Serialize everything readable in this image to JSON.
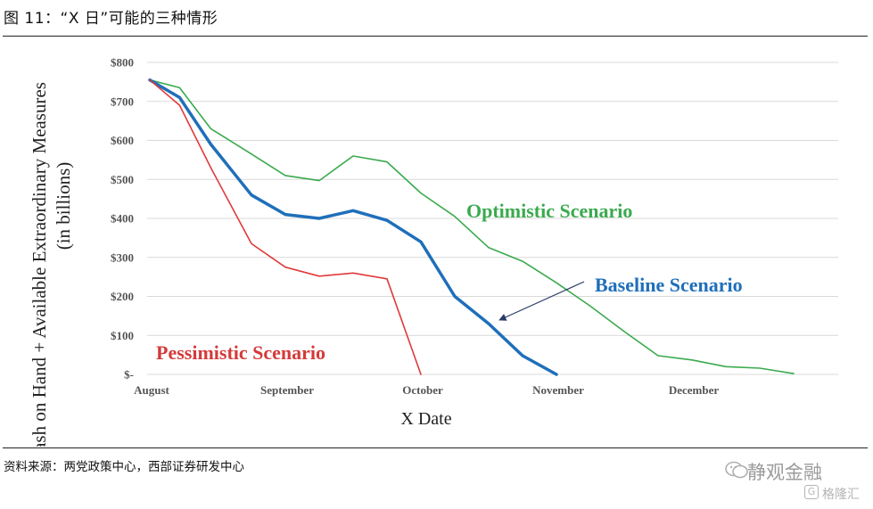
{
  "figure": {
    "title": "图 11：“X 日”可能的三种情形",
    "source": "资料来源：两党政策中心，西部证券研发中心"
  },
  "watermark": {
    "name": "静观金融",
    "sub": "格隆汇",
    "logo_icon": "wechat-icon",
    "badge_icon": "g-icon",
    "badge_glyph": "G"
  },
  "chart_data": {
    "type": "line",
    "xlabel": "X Date",
    "ylabel": "Cash on Hand + Available Extraordinary Measures",
    "ylabel_sub": "(in billions)",
    "x_range": [
      0,
      5.0
    ],
    "ylim": [
      0,
      800
    ],
    "yticks": [
      {
        "value": 800,
        "label": "$800"
      },
      {
        "value": 700,
        "label": "$700"
      },
      {
        "value": 600,
        "label": "$600"
      },
      {
        "value": 500,
        "label": "$500"
      },
      {
        "value": 400,
        "label": "$400"
      },
      {
        "value": 300,
        "label": "$300"
      },
      {
        "value": 200,
        "label": "$200"
      },
      {
        "value": 100,
        "label": "$100"
      },
      {
        "value": 0,
        "label": "$-"
      }
    ],
    "xticks": [
      {
        "value": 0,
        "label": "August"
      },
      {
        "value": 1,
        "label": "September"
      },
      {
        "value": 2,
        "label": "October"
      },
      {
        "value": 3,
        "label": "November"
      },
      {
        "value": 4,
        "label": "December"
      }
    ],
    "grid": "horizontal",
    "series": [
      {
        "name": "Optimistic Scenario",
        "color": "#3aaa4e",
        "width": 1.6,
        "points": [
          [
            0,
            755
          ],
          [
            0.22,
            735
          ],
          [
            0.45,
            630
          ],
          [
            0.75,
            565
          ],
          [
            1.0,
            510
          ],
          [
            1.25,
            497
          ],
          [
            1.5,
            560
          ],
          [
            1.75,
            545
          ],
          [
            2.0,
            465
          ],
          [
            2.25,
            405
          ],
          [
            2.5,
            325
          ],
          [
            2.75,
            290
          ],
          [
            3.0,
            235
          ],
          [
            3.25,
            175
          ],
          [
            3.5,
            110
          ],
          [
            3.75,
            48
          ],
          [
            4.0,
            37
          ],
          [
            4.25,
            20
          ],
          [
            4.5,
            16
          ],
          [
            4.75,
            2
          ]
        ]
      },
      {
        "name": "Baseline Scenario",
        "color": "#1f6fba",
        "width": 3.5,
        "points": [
          [
            0,
            755
          ],
          [
            0.22,
            710
          ],
          [
            0.45,
            590
          ],
          [
            0.75,
            460
          ],
          [
            1.0,
            410
          ],
          [
            1.25,
            400
          ],
          [
            1.5,
            420
          ],
          [
            1.75,
            395
          ],
          [
            2.0,
            340
          ],
          [
            2.25,
            200
          ],
          [
            2.5,
            130
          ],
          [
            2.75,
            48
          ],
          [
            3.0,
            0
          ]
        ]
      },
      {
        "name": "Pessimistic Scenario",
        "color": "#e03a3a",
        "width": 1.6,
        "points": [
          [
            0,
            755
          ],
          [
            0.22,
            690
          ],
          [
            0.45,
            530
          ],
          [
            0.75,
            335
          ],
          [
            1.0,
            275
          ],
          [
            1.25,
            252
          ],
          [
            1.5,
            260
          ],
          [
            1.75,
            245
          ],
          [
            2.0,
            0
          ]
        ]
      }
    ],
    "annotations": [
      {
        "text": "Optimistic Scenario",
        "color": "#3aaa4e",
        "series": 0
      },
      {
        "text": "Baseline Scenario",
        "color": "#1f6fba",
        "series": 1,
        "arrow": true
      },
      {
        "text": "Pessimistic Scenario",
        "color": "#d43a3a",
        "series": 2
      }
    ]
  }
}
